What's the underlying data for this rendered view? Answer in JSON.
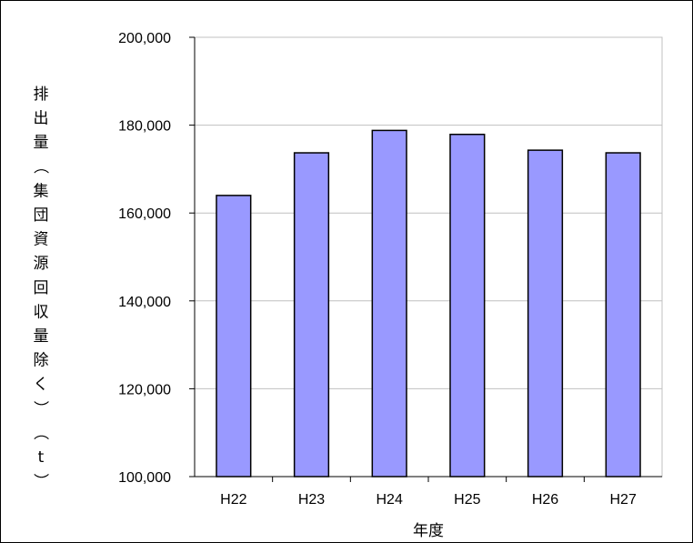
{
  "chart_data": {
    "type": "bar",
    "title": "",
    "xlabel": "年度",
    "ylabel": "排出量（集団資源回収量除く）（t）",
    "categories": [
      "H22",
      "H23",
      "H24",
      "H25",
      "H26",
      "H27"
    ],
    "values": [
      164000,
      173700,
      178800,
      177900,
      174300,
      173700
    ],
    "ylim": [
      100000,
      200000
    ],
    "yticks": [
      100000,
      120000,
      140000,
      160000,
      180000,
      200000
    ],
    "ytick_labels": [
      "100,000",
      "120,000",
      "140,000",
      "160,000",
      "180,000",
      "200,000"
    ],
    "grid": true,
    "legend": "none",
    "bar_color": "#9999ff",
    "bar_edge_color": "#000000",
    "gridline_color": "#c0c0c0"
  }
}
